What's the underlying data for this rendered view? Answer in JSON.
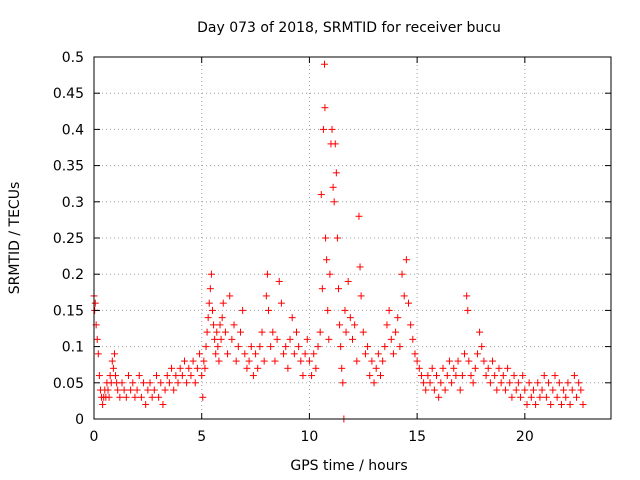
{
  "chart_data": {
    "type": "scatter",
    "title": "Day 073 of 2018, SRMTID for receiver bucu",
    "xlabel": "GPS time / hours",
    "ylabel": "SRMTID / TECUs",
    "xlim": [
      0,
      24
    ],
    "ylim": [
      0,
      0.5
    ],
    "xticks": [
      0,
      5,
      10,
      15,
      20
    ],
    "xtick_labels": [
      "0",
      "5",
      "10",
      "15",
      "20"
    ],
    "yticks": [
      0,
      0.05,
      0.1,
      0.15,
      0.2,
      0.25,
      0.3,
      0.35,
      0.4,
      0.45,
      0.5
    ],
    "ytick_labels": [
      "0",
      "0.05",
      "0.1",
      "0.15",
      "0.2",
      "0.25",
      "0.3",
      "0.35",
      "0.4",
      "0.45",
      "0.5"
    ],
    "grid": true,
    "marker": "+",
    "color": "#ff0000",
    "series": [
      {
        "name": "SRMTID",
        "points": [
          [
            0.0,
            0.17
          ],
          [
            0.03,
            0.15
          ],
          [
            0.06,
            0.16
          ],
          [
            0.1,
            0.13
          ],
          [
            0.15,
            0.11
          ],
          [
            0.2,
            0.09
          ],
          [
            0.25,
            0.06
          ],
          [
            0.3,
            0.04
          ],
          [
            0.35,
            0.03
          ],
          [
            0.4,
            0.02
          ],
          [
            0.45,
            0.03
          ],
          [
            0.5,
            0.04
          ],
          [
            0.55,
            0.03
          ],
          [
            0.6,
            0.05
          ],
          [
            0.65,
            0.04
          ],
          [
            0.7,
            0.03
          ],
          [
            0.75,
            0.06
          ],
          [
            0.8,
            0.05
          ],
          [
            0.85,
            0.08
          ],
          [
            0.9,
            0.07
          ],
          [
            0.95,
            0.09
          ],
          [
            1.0,
            0.06
          ],
          [
            1.05,
            0.05
          ],
          [
            1.1,
            0.04
          ],
          [
            1.2,
            0.03
          ],
          [
            1.3,
            0.05
          ],
          [
            1.4,
            0.04
          ],
          [
            1.5,
            0.03
          ],
          [
            1.6,
            0.06
          ],
          [
            1.7,
            0.04
          ],
          [
            1.8,
            0.05
          ],
          [
            1.9,
            0.03
          ],
          [
            2.0,
            0.04
          ],
          [
            2.1,
            0.06
          ],
          [
            2.2,
            0.03
          ],
          [
            2.3,
            0.05
          ],
          [
            2.4,
            0.02
          ],
          [
            2.5,
            0.04
          ],
          [
            2.6,
            0.05
          ],
          [
            2.7,
            0.03
          ],
          [
            2.8,
            0.04
          ],
          [
            2.9,
            0.06
          ],
          [
            3.0,
            0.03
          ],
          [
            3.1,
            0.05
          ],
          [
            3.2,
            0.02
          ],
          [
            3.3,
            0.04
          ],
          [
            3.4,
            0.06
          ],
          [
            3.5,
            0.05
          ],
          [
            3.6,
            0.07
          ],
          [
            3.7,
            0.04
          ],
          [
            3.8,
            0.06
          ],
          [
            3.9,
            0.05
          ],
          [
            4.0,
            0.07
          ],
          [
            4.1,
            0.06
          ],
          [
            4.2,
            0.08
          ],
          [
            4.3,
            0.05
          ],
          [
            4.4,
            0.07
          ],
          [
            4.5,
            0.06
          ],
          [
            4.6,
            0.08
          ],
          [
            4.7,
            0.05
          ],
          [
            4.8,
            0.07
          ],
          [
            4.9,
            0.09
          ],
          [
            5.0,
            0.06
          ],
          [
            5.05,
            0.03
          ],
          [
            5.1,
            0.08
          ],
          [
            5.15,
            0.07
          ],
          [
            5.2,
            0.1
          ],
          [
            5.25,
            0.12
          ],
          [
            5.3,
            0.14
          ],
          [
            5.35,
            0.16
          ],
          [
            5.4,
            0.18
          ],
          [
            5.45,
            0.2
          ],
          [
            5.5,
            0.15
          ],
          [
            5.55,
            0.13
          ],
          [
            5.6,
            0.11
          ],
          [
            5.65,
            0.09
          ],
          [
            5.7,
            0.12
          ],
          [
            5.75,
            0.1
          ],
          [
            5.8,
            0.08
          ],
          [
            5.85,
            0.13
          ],
          [
            5.9,
            0.11
          ],
          [
            5.95,
            0.14
          ],
          [
            6.0,
            0.16
          ],
          [
            6.1,
            0.12
          ],
          [
            6.2,
            0.09
          ],
          [
            6.3,
            0.17
          ],
          [
            6.4,
            0.11
          ],
          [
            6.5,
            0.13
          ],
          [
            6.6,
            0.08
          ],
          [
            6.7,
            0.1
          ],
          [
            6.8,
            0.12
          ],
          [
            6.9,
            0.15
          ],
          [
            7.0,
            0.09
          ],
          [
            7.1,
            0.07
          ],
          [
            7.2,
            0.08
          ],
          [
            7.3,
            0.1
          ],
          [
            7.4,
            0.06
          ],
          [
            7.5,
            0.09
          ],
          [
            7.6,
            0.07
          ],
          [
            7.7,
            0.1
          ],
          [
            7.8,
            0.12
          ],
          [
            7.9,
            0.08
          ],
          [
            8.0,
            0.17
          ],
          [
            8.05,
            0.2
          ],
          [
            8.1,
            0.15
          ],
          [
            8.2,
            0.1
          ],
          [
            8.3,
            0.12
          ],
          [
            8.4,
            0.08
          ],
          [
            8.5,
            0.11
          ],
          [
            8.6,
            0.19
          ],
          [
            8.7,
            0.16
          ],
          [
            8.8,
            0.09
          ],
          [
            8.9,
            0.1
          ],
          [
            9.0,
            0.07
          ],
          [
            9.1,
            0.11
          ],
          [
            9.2,
            0.14
          ],
          [
            9.3,
            0.09
          ],
          [
            9.4,
            0.12
          ],
          [
            9.5,
            0.1
          ],
          [
            9.6,
            0.08
          ],
          [
            9.7,
            0.06
          ],
          [
            9.8,
            0.09
          ],
          [
            9.9,
            0.11
          ],
          [
            10.0,
            0.08
          ],
          [
            10.1,
            0.06
          ],
          [
            10.2,
            0.09
          ],
          [
            10.3,
            0.07
          ],
          [
            10.4,
            0.1
          ],
          [
            10.5,
            0.12
          ],
          [
            10.55,
            0.31
          ],
          [
            10.6,
            0.18
          ],
          [
            10.65,
            0.4
          ],
          [
            10.7,
            0.49
          ],
          [
            10.72,
            0.43
          ],
          [
            10.75,
            0.25
          ],
          [
            10.8,
            0.22
          ],
          [
            10.85,
            0.15
          ],
          [
            10.9,
            0.11
          ],
          [
            10.95,
            0.2
          ],
          [
            11.0,
            0.38
          ],
          [
            11.05,
            0.4
          ],
          [
            11.1,
            0.32
          ],
          [
            11.15,
            0.3
          ],
          [
            11.2,
            0.38
          ],
          [
            11.25,
            0.34
          ],
          [
            11.3,
            0.25
          ],
          [
            11.35,
            0.18
          ],
          [
            11.4,
            0.13
          ],
          [
            11.45,
            0.1
          ],
          [
            11.5,
            0.07
          ],
          [
            11.55,
            0.05
          ],
          [
            11.6,
            0.0
          ],
          [
            11.65,
            0.15
          ],
          [
            11.7,
            0.12
          ],
          [
            11.8,
            0.19
          ],
          [
            11.9,
            0.14
          ],
          [
            12.0,
            0.11
          ],
          [
            12.1,
            0.13
          ],
          [
            12.2,
            0.08
          ],
          [
            12.3,
            0.28
          ],
          [
            12.35,
            0.21
          ],
          [
            12.4,
            0.17
          ],
          [
            12.5,
            0.12
          ],
          [
            12.6,
            0.09
          ],
          [
            12.7,
            0.1
          ],
          [
            12.8,
            0.06
          ],
          [
            12.9,
            0.08
          ],
          [
            13.0,
            0.05
          ],
          [
            13.1,
            0.07
          ],
          [
            13.2,
            0.09
          ],
          [
            13.3,
            0.06
          ],
          [
            13.4,
            0.08
          ],
          [
            13.5,
            0.1
          ],
          [
            13.6,
            0.13
          ],
          [
            13.7,
            0.15
          ],
          [
            13.8,
            0.11
          ],
          [
            13.9,
            0.09
          ],
          [
            14.0,
            0.12
          ],
          [
            14.1,
            0.14
          ],
          [
            14.2,
            0.1
          ],
          [
            14.3,
            0.2
          ],
          [
            14.4,
            0.17
          ],
          [
            14.5,
            0.22
          ],
          [
            14.6,
            0.16
          ],
          [
            14.7,
            0.13
          ],
          [
            14.8,
            0.11
          ],
          [
            14.9,
            0.09
          ],
          [
            15.0,
            0.08
          ],
          [
            15.1,
            0.07
          ],
          [
            15.2,
            0.06
          ],
          [
            15.3,
            0.05
          ],
          [
            15.4,
            0.04
          ],
          [
            15.5,
            0.06
          ],
          [
            15.6,
            0.05
          ],
          [
            15.7,
            0.07
          ],
          [
            15.8,
            0.04
          ],
          [
            15.9,
            0.06
          ],
          [
            16.0,
            0.03
          ],
          [
            16.1,
            0.05
          ],
          [
            16.2,
            0.07
          ],
          [
            16.3,
            0.04
          ],
          [
            16.4,
            0.06
          ],
          [
            16.5,
            0.08
          ],
          [
            16.6,
            0.05
          ],
          [
            16.7,
            0.07
          ],
          [
            16.8,
            0.06
          ],
          [
            16.9,
            0.08
          ],
          [
            17.0,
            0.04
          ],
          [
            17.1,
            0.06
          ],
          [
            17.2,
            0.09
          ],
          [
            17.3,
            0.17
          ],
          [
            17.35,
            0.15
          ],
          [
            17.4,
            0.08
          ],
          [
            17.5,
            0.06
          ],
          [
            17.6,
            0.05
          ],
          [
            17.7,
            0.07
          ],
          [
            17.8,
            0.09
          ],
          [
            17.9,
            0.12
          ],
          [
            18.0,
            0.1
          ],
          [
            18.1,
            0.08
          ],
          [
            18.2,
            0.06
          ],
          [
            18.3,
            0.07
          ],
          [
            18.4,
            0.05
          ],
          [
            18.5,
            0.08
          ],
          [
            18.6,
            0.06
          ],
          [
            18.7,
            0.04
          ],
          [
            18.8,
            0.07
          ],
          [
            18.9,
            0.05
          ],
          [
            19.0,
            0.06
          ],
          [
            19.1,
            0.04
          ],
          [
            19.2,
            0.07
          ],
          [
            19.3,
            0.05
          ],
          [
            19.4,
            0.03
          ],
          [
            19.5,
            0.06
          ],
          [
            19.6,
            0.04
          ],
          [
            19.7,
            0.05
          ],
          [
            19.8,
            0.03
          ],
          [
            19.9,
            0.06
          ],
          [
            20.0,
            0.04
          ],
          [
            20.1,
            0.02
          ],
          [
            20.2,
            0.05
          ],
          [
            20.3,
            0.03
          ],
          [
            20.4,
            0.04
          ],
          [
            20.5,
            0.02
          ],
          [
            20.6,
            0.05
          ],
          [
            20.7,
            0.03
          ],
          [
            20.8,
            0.04
          ],
          [
            20.9,
            0.06
          ],
          [
            21.0,
            0.03
          ],
          [
            21.1,
            0.05
          ],
          [
            21.2,
            0.02
          ],
          [
            21.3,
            0.04
          ],
          [
            21.4,
            0.06
          ],
          [
            21.5,
            0.03
          ],
          [
            21.6,
            0.05
          ],
          [
            21.7,
            0.02
          ],
          [
            21.8,
            0.04
          ],
          [
            21.9,
            0.03
          ],
          [
            22.0,
            0.05
          ],
          [
            22.1,
            0.02
          ],
          [
            22.2,
            0.04
          ],
          [
            22.3,
            0.06
          ],
          [
            22.4,
            0.03
          ],
          [
            22.5,
            0.05
          ],
          [
            22.6,
            0.04
          ],
          [
            22.7,
            0.02
          ]
        ]
      }
    ]
  }
}
